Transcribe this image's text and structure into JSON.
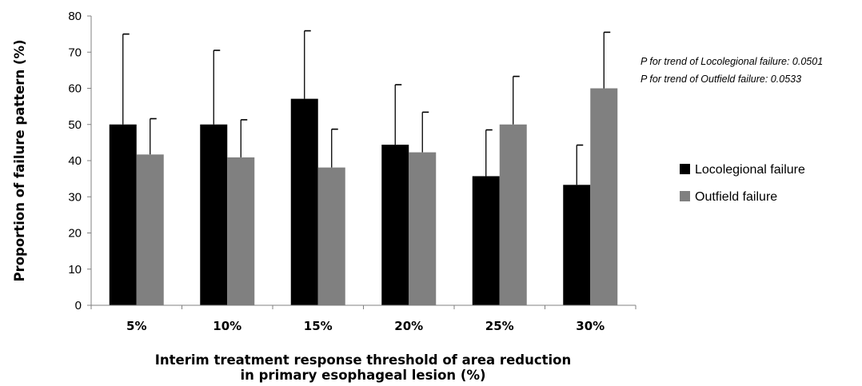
{
  "chart_data": {
    "type": "bar",
    "title": "",
    "categories": [
      "5%",
      "10%",
      "15%",
      "20%",
      "25%",
      "30%"
    ],
    "series": [
      {
        "name": "Locolegional failure",
        "color": "#000000",
        "values": [
          50.0,
          50.0,
          57.1,
          44.4,
          35.7,
          33.3
        ],
        "error_upper": [
          75.0,
          70.5,
          75.9,
          61.0,
          48.5,
          44.3
        ]
      },
      {
        "name": "Outfield failure",
        "color": "#808080",
        "values": [
          41.7,
          40.9,
          38.1,
          42.3,
          50.0,
          60.0
        ],
        "error_upper": [
          51.6,
          51.3,
          48.7,
          53.4,
          63.3,
          75.5
        ]
      }
    ],
    "ylabel": "Proportion of failure pattern (%)",
    "xlabel_line1": "Interim treatment response threshold of area reduction",
    "xlabel_line2": "in primary esophageal lesion (%)",
    "ylim": [
      0,
      80
    ],
    "yticks": [
      "0",
      "10",
      "20",
      "30",
      "40",
      "50",
      "60",
      "70",
      "80"
    ],
    "grid": false,
    "legend_position": "right",
    "annotations": [
      "P for trend of Locolegional failure: 0.0501",
      "P for trend of Outfield failure: 0.0533"
    ]
  }
}
